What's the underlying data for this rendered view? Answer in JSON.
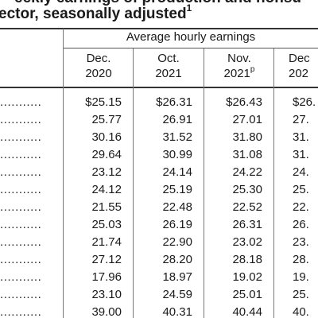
{
  "title": {
    "line1": "eekly earnings of production and nonsu",
    "line2": "ector, seasonally adjusted",
    "footnote_mark": "1"
  },
  "table": {
    "group_header": "Average hourly earnings",
    "columns": [
      {
        "month": "Dec.",
        "year": "2020",
        "prelim": ""
      },
      {
        "month": "Oct.",
        "year": "2021",
        "prelim": ""
      },
      {
        "month": "Nov.",
        "year": "2021",
        "prelim": "p"
      },
      {
        "month": "Dec",
        "year": "202",
        "prelim": ""
      }
    ],
    "leader": "...........",
    "rows": [
      [
        "$25.15",
        "$26.31",
        "$26.43",
        "$26."
      ],
      [
        "25.77",
        "26.91",
        "27.01",
        "27."
      ],
      [
        "30.16",
        "31.52",
        "31.80",
        "31."
      ],
      [
        "29.64",
        "30.99",
        "31.08",
        "31."
      ],
      [
        "23.12",
        "24.14",
        "24.22",
        "24."
      ],
      [
        "24.12",
        "25.19",
        "25.30",
        "25."
      ],
      [
        "21.55",
        "22.48",
        "22.52",
        "22."
      ],
      [
        "25.03",
        "26.19",
        "26.31",
        "26."
      ],
      [
        "21.74",
        "22.90",
        "23.02",
        "23."
      ],
      [
        "27.12",
        "28.20",
        "28.18",
        "28."
      ],
      [
        "17.96",
        "18.97",
        "19.02",
        "19."
      ],
      [
        "23.10",
        "24.59",
        "25.01",
        "25."
      ],
      [
        "39.00",
        "40.31",
        "40.44",
        "40."
      ]
    ]
  }
}
